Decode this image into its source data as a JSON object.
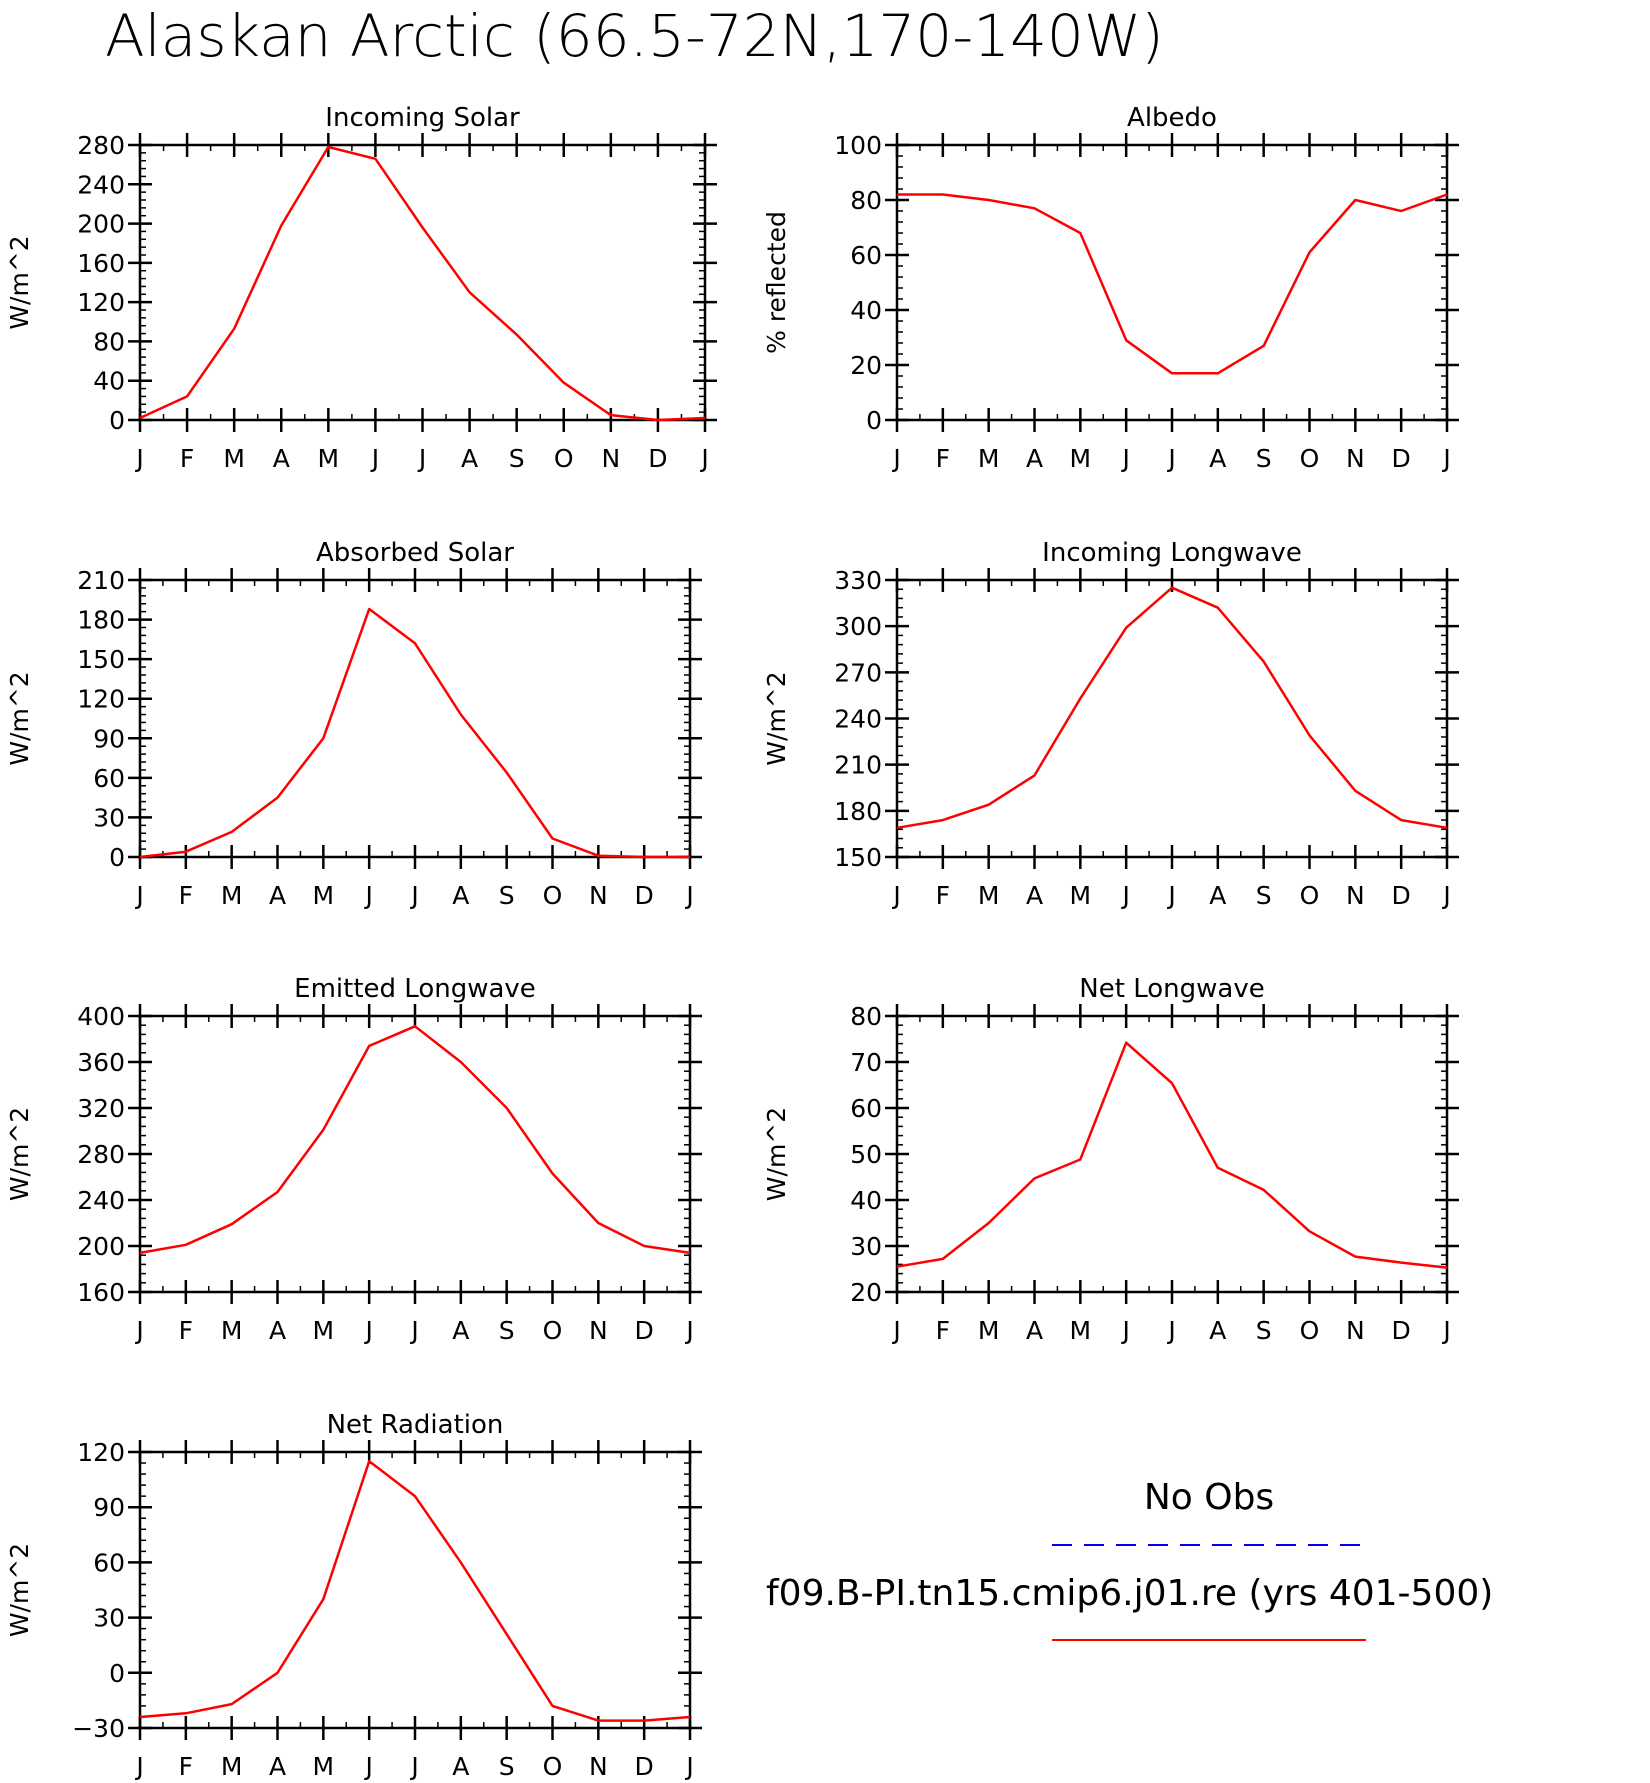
{
  "title": "Alaskan Arctic (66.5-72N,170-140W)",
  "month_labels": [
    "J",
    "F",
    "M",
    "A",
    "M",
    "J",
    "J",
    "A",
    "S",
    "O",
    "N",
    "D",
    "J"
  ],
  "series_color": "#ff0000",
  "obs_color": "#0000ff",
  "legend": {
    "obs_label": "No Obs",
    "model_label": "f09.B-PI.tn15.cmip6.j01.re (yrs 401-500)"
  },
  "chart_data": [
    {
      "type": "line",
      "title": "Incoming Solar",
      "ylabel": "W/m^2",
      "ylim": [
        0,
        280
      ],
      "yticks": [
        0,
        40,
        80,
        120,
        160,
        200,
        240,
        280
      ],
      "x": [
        "J",
        "F",
        "M",
        "A",
        "M",
        "J",
        "J",
        "A",
        "S",
        "O",
        "N",
        "D",
        "J"
      ],
      "values": [
        2,
        24,
        93,
        198,
        278,
        266,
        196,
        130,
        87,
        38,
        5,
        0,
        2
      ]
    },
    {
      "type": "line",
      "title": "Albedo",
      "ylabel": "% reflected",
      "ylim": [
        0,
        100
      ],
      "yticks": [
        0,
        20,
        40,
        60,
        80,
        100
      ],
      "x": [
        "J",
        "F",
        "M",
        "A",
        "M",
        "J",
        "J",
        "A",
        "S",
        "O",
        "N",
        "D",
        "J"
      ],
      "values": [
        82,
        82,
        80,
        77,
        68,
        29,
        17,
        17,
        27,
        61,
        80,
        76,
        82
      ]
    },
    {
      "type": "line",
      "title": "Absorbed Solar",
      "ylabel": "W/m^2",
      "ylim": [
        0,
        210
      ],
      "yticks": [
        0,
        30,
        60,
        90,
        120,
        150,
        180,
        210
      ],
      "x": [
        "J",
        "F",
        "M",
        "A",
        "M",
        "J",
        "J",
        "A",
        "S",
        "O",
        "N",
        "D",
        "J"
      ],
      "values": [
        0,
        4,
        19,
        45,
        90,
        188,
        162,
        108,
        64,
        14,
        1,
        0,
        0
      ]
    },
    {
      "type": "line",
      "title": "Incoming Longwave",
      "ylabel": "W/m^2",
      "ylim": [
        150,
        330
      ],
      "yticks": [
        150,
        180,
        210,
        240,
        270,
        300,
        330
      ],
      "x": [
        "J",
        "F",
        "M",
        "A",
        "M",
        "J",
        "J",
        "A",
        "S",
        "O",
        "N",
        "D",
        "J"
      ],
      "values": [
        169,
        174,
        184,
        203,
        253,
        299,
        325,
        312,
        277,
        229,
        193,
        174,
        169
      ]
    },
    {
      "type": "line",
      "title": "Emitted Longwave",
      "ylabel": "W/m^2",
      "ylim": [
        160,
        400
      ],
      "yticks": [
        160,
        200,
        240,
        280,
        320,
        360,
        400
      ],
      "x": [
        "J",
        "F",
        "M",
        "A",
        "M",
        "J",
        "J",
        "A",
        "S",
        "O",
        "N",
        "D",
        "J"
      ],
      "values": [
        194,
        201,
        219,
        247,
        301,
        374,
        391,
        360,
        320,
        263,
        220,
        200,
        194
      ]
    },
    {
      "type": "line",
      "title": "Net Longwave",
      "ylabel": "W/m^2",
      "ylim": [
        20,
        80
      ],
      "yticks": [
        20,
        30,
        40,
        50,
        60,
        70,
        80
      ],
      "x": [
        "J",
        "F",
        "M",
        "A",
        "M",
        "J",
        "J",
        "A",
        "S",
        "O",
        "N",
        "D",
        "J"
      ],
      "values": [
        25.5,
        27.2,
        35,
        44.7,
        48.8,
        74.2,
        65.4,
        47,
        42.2,
        33.2,
        27.7,
        26.4,
        25.3
      ]
    },
    {
      "type": "line",
      "title": "Net Radiation",
      "ylabel": "W/m^2",
      "ylim": [
        -30,
        120
      ],
      "yticks": [
        -30,
        0,
        30,
        60,
        90,
        120
      ],
      "x": [
        "J",
        "F",
        "M",
        "A",
        "M",
        "J",
        "J",
        "A",
        "S",
        "O",
        "N",
        "D",
        "J"
      ],
      "values": [
        -24,
        -22,
        -17,
        0,
        40,
        115,
        96,
        60,
        21,
        -18,
        -26,
        -26,
        -24
      ]
    }
  ]
}
